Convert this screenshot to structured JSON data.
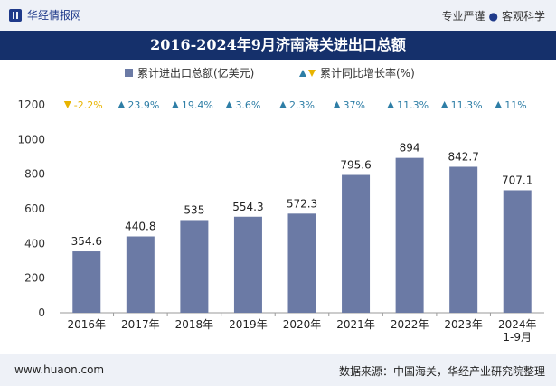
{
  "header": {
    "brand": "华经情报网",
    "tagline_left": "专业严谨",
    "tagline_right": "客观科学"
  },
  "footer": {
    "website": "www.huaon.com",
    "source": "数据来源：中国海关，华经产业研究院整理"
  },
  "chart_data": {
    "type": "bar",
    "title": "2016-2024年9月济南海关进出口总额",
    "categories": [
      "2016年",
      "2017年",
      "2018年",
      "2019年",
      "2020年",
      "2021年",
      "2022年",
      "2023年",
      "2024年\n1-9月"
    ],
    "series": [
      {
        "name": "累计进出口总额(亿美元)",
        "values": [
          354.6,
          440.8,
          535,
          554.3,
          572.3,
          795.6,
          894,
          842.7,
          707.1
        ],
        "labels": [
          "354.6",
          "440.8",
          "535",
          "554.3",
          "572.3",
          "795.6",
          "894",
          "842.7",
          "707.1"
        ],
        "color": "#6b7aa5"
      },
      {
        "name": "累计同比增长率(%)",
        "values": [
          -2.2,
          23.9,
          19.4,
          3.6,
          2.3,
          37,
          11.3,
          11.3,
          11
        ],
        "labels": [
          "-2.2%",
          "23.9%",
          "19.4%",
          "3.6%",
          "2.3%",
          "37%",
          "11.3%",
          "11.3%",
          "11%"
        ],
        "up_color": "#2e7ea6",
        "down_color": "#e8b400"
      }
    ],
    "yticks": [
      0,
      200,
      400,
      600,
      800,
      1000,
      1200
    ],
    "ylim": [
      0,
      1200
    ],
    "legend_position": "top-center",
    "grid": false
  }
}
